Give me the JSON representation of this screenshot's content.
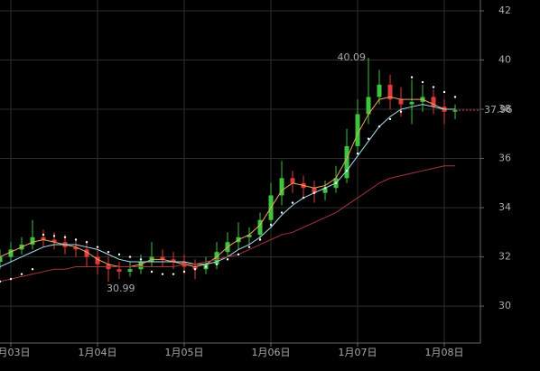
{
  "chart_data": {
    "type": "candlestick",
    "xlim": [
      0,
      44.33
    ],
    "xticks": [
      {
        "value": 1,
        "label": "1月03日"
      },
      {
        "value": 9,
        "label": "1月04日"
      },
      {
        "value": 17,
        "label": "1月05日"
      },
      {
        "value": 25,
        "label": "1月06日"
      },
      {
        "value": 33,
        "label": "1月07日"
      },
      {
        "value": 41,
        "label": "1月08日"
      }
    ],
    "ylim": [
      28.5,
      42.44
    ],
    "yticks": [
      30,
      32,
      34,
      36,
      38,
      40,
      42
    ],
    "grid": true,
    "up_color": "#3ec43e",
    "down_color": "#e23a3a",
    "open": [
      31.8,
      32.0,
      32.3,
      32.5,
      32.8,
      32.7,
      32.6,
      32.4,
      32.3,
      32.0,
      31.7,
      31.5,
      31.4,
      31.5,
      31.8,
      32.0,
      31.9,
      31.8,
      31.6,
      31.5,
      31.7,
      32.2,
      32.6,
      32.8,
      32.9,
      33.5,
      34.5,
      35.2,
      35.0,
      34.8,
      34.6,
      34.8,
      35.2,
      36.5,
      37.8,
      38.5,
      39.0,
      38.4,
      38.2,
      38.3,
      38.5,
      38.1,
      37.9
    ],
    "high": [
      32.3,
      32.6,
      32.8,
      33.5,
      33.1,
      33.0,
      32.9,
      32.7,
      32.6,
      32.3,
      32.0,
      31.8,
      31.8,
      32.1,
      32.6,
      32.3,
      32.2,
      32.1,
      31.9,
      32.0,
      32.6,
      33.0,
      33.4,
      33.2,
      33.8,
      35.0,
      35.9,
      35.5,
      35.3,
      35.1,
      35.1,
      35.7,
      37.2,
      38.4,
      40.09,
      39.6,
      39.4,
      38.9,
      39.2,
      39.0,
      38.8,
      38.4,
      38.2
    ],
    "low": [
      31.5,
      31.8,
      32.1,
      32.3,
      32.4,
      32.3,
      32.1,
      32.0,
      31.6,
      31.3,
      30.99,
      31.1,
      31.2,
      31.3,
      31.6,
      31.6,
      31.5,
      31.3,
      31.1,
      31.3,
      31.5,
      32.0,
      32.3,
      32.5,
      32.7,
      33.2,
      34.1,
      34.6,
      34.4,
      34.2,
      34.3,
      34.6,
      35.0,
      36.2,
      37.4,
      38.2,
      38.0,
      37.7,
      37.4,
      37.9,
      37.8,
      37.4,
      37.6
    ],
    "close": [
      32.0,
      32.3,
      32.5,
      32.8,
      32.7,
      32.6,
      32.4,
      32.3,
      32.0,
      31.7,
      31.5,
      31.4,
      31.5,
      31.8,
      32.0,
      31.9,
      31.8,
      31.6,
      31.5,
      31.7,
      32.2,
      32.6,
      32.8,
      32.9,
      33.5,
      34.5,
      35.2,
      35.0,
      34.8,
      34.6,
      34.8,
      35.2,
      36.5,
      37.8,
      38.5,
      39.0,
      38.4,
      38.2,
      38.3,
      38.5,
      38.1,
      37.9,
      37.96
    ],
    "lines": [
      {
        "color": "#f0a860",
        "values": [
          32.0,
          32.2,
          32.4,
          32.6,
          32.7,
          32.6,
          32.5,
          32.4,
          32.2,
          31.9,
          31.7,
          31.6,
          31.6,
          31.7,
          31.9,
          31.9,
          31.8,
          31.7,
          31.6,
          31.7,
          32.0,
          32.4,
          32.7,
          32.9,
          33.3,
          34.0,
          34.7,
          35.0,
          34.9,
          34.8,
          34.9,
          35.2,
          36.0,
          37.0,
          37.8,
          38.4,
          38.5,
          38.4,
          38.4,
          38.4,
          38.2,
          38.0,
          38.0
        ]
      },
      {
        "color": "#a8e0f0",
        "values": [
          31.6,
          31.8,
          32.0,
          32.2,
          32.4,
          32.5,
          32.5,
          32.5,
          32.4,
          32.3,
          32.1,
          31.9,
          31.8,
          31.8,
          31.8,
          31.8,
          31.8,
          31.8,
          31.7,
          31.7,
          31.8,
          32.0,
          32.3,
          32.5,
          32.8,
          33.2,
          33.7,
          34.1,
          34.4,
          34.6,
          34.8,
          35.0,
          35.5,
          36.1,
          36.7,
          37.3,
          37.7,
          38.0,
          38.1,
          38.2,
          38.1,
          38.0,
          38.0
        ]
      },
      {
        "color": "#a8343c",
        "values": [
          31.0,
          31.1,
          31.2,
          31.3,
          31.4,
          31.5,
          31.5,
          31.6,
          31.6,
          31.6,
          31.6,
          31.6,
          31.6,
          31.6,
          31.6,
          31.6,
          31.6,
          31.7,
          31.7,
          31.8,
          31.9,
          32.0,
          32.1,
          32.3,
          32.5,
          32.7,
          32.9,
          33.0,
          33.2,
          33.4,
          33.6,
          33.8,
          34.1,
          34.4,
          34.7,
          35.0,
          35.2,
          35.3,
          35.4,
          35.5,
          35.6,
          35.7,
          35.7
        ]
      }
    ],
    "sar": {
      "color": "#ffffff",
      "values": [
        31.0,
        31.1,
        31.3,
        31.5,
        32.9,
        32.85,
        32.8,
        32.7,
        32.6,
        32.4,
        32.2,
        32.1,
        32.0,
        31.9,
        31.4,
        31.3,
        31.3,
        31.4,
        31.5,
        31.6,
        31.7,
        31.9,
        32.1,
        32.4,
        32.7,
        33.3,
        33.8,
        34.2,
        34.4,
        34.6,
        34.8,
        35.0,
        35.5,
        36.2,
        36.8,
        37.3,
        37.6,
        37.9,
        39.3,
        39.1,
        38.9,
        38.7,
        38.5
      ]
    },
    "max_index": 34,
    "min_index": 10
  }
}
